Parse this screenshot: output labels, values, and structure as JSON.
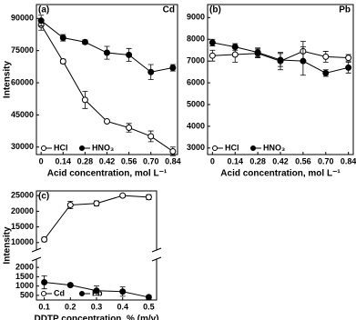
{
  "chart_data": [
    {
      "type": "line",
      "label": "(a)",
      "element": "Cd",
      "x_label": "Acid concentration, mol L⁻¹",
      "y_label": "Intensity",
      "x": [
        0,
        0.14,
        0.28,
        0.42,
        0.56,
        0.7,
        0.84
      ],
      "xlim": [
        -0.03,
        0.87
      ],
      "xticks": [
        0,
        0.14,
        0.28,
        0.42,
        0.56,
        {
          "value": 0.7,
          "label": "0.70"
        },
        0.84
      ],
      "ylim": [
        26500,
        96500
      ],
      "yticks": [
        30000,
        45000,
        60000,
        75000,
        90000
      ],
      "legend": "lower left",
      "series": [
        {
          "name": "HCl",
          "color": "#000000",
          "marker_fill": "#ffffff",
          "values": [
            87000,
            70000,
            52000,
            42000,
            39000,
            35000,
            28000
          ],
          "errors": [
            2500,
            1000,
            4000,
            600,
            2000,
            2500,
            2000
          ]
        },
        {
          "name": "HNO₃",
          "color": "#000000",
          "marker_fill": "#000000",
          "values": [
            89000,
            81000,
            79000,
            74000,
            73000,
            65000,
            67000
          ],
          "errors": [
            2500,
            1500,
            1000,
            3000,
            3000,
            3500,
            1500
          ]
        }
      ]
    },
    {
      "type": "line",
      "label": "(b)",
      "element": "Pb",
      "x_label": "Acid concentration, mol L⁻¹",
      "x": [
        0,
        0.14,
        0.28,
        0.42,
        0.56,
        0.7,
        0.84
      ],
      "xlim": [
        -0.03,
        0.87
      ],
      "xticks": [
        0,
        0.14,
        0.28,
        0.42,
        0.56,
        {
          "value": 0.7,
          "label": "0.70"
        },
        0.84
      ],
      "ylim": [
        2700,
        9600
      ],
      "yticks": [
        3000,
        4000,
        5000,
        6000,
        7000,
        8000,
        9000
      ],
      "legend": "lower left",
      "series": [
        {
          "name": "HCl",
          "color": "#000000",
          "marker_fill": "#ffffff",
          "values": [
            7250,
            7300,
            7350,
            7000,
            7450,
            7200,
            7150
          ],
          "errors": [
            250,
            350,
            200,
            400,
            450,
            250,
            150
          ]
        },
        {
          "name": "HNO₃",
          "color": "#000000",
          "marker_fill": "#000000",
          "values": [
            7850,
            7650,
            7400,
            7050,
            7000,
            6450,
            6700
          ],
          "errors": [
            150,
            150,
            200,
            300,
            650,
            150,
            250
          ]
        }
      ]
    },
    {
      "type": "broken-line",
      "label": "(c)",
      "x_label": "DDTP concentration, % (m/v)",
      "y_label": "Intensity",
      "x": [
        0.1,
        0.2,
        0.3,
        0.4,
        0.5
      ],
      "xlim": [
        0.07,
        0.53
      ],
      "xticks": [
        0.1,
        0.2,
        0.3,
        0.4,
        0.5
      ],
      "ylim": [
        250,
        2300
      ],
      "yticks": [
        500,
        1000,
        1500,
        2000
      ],
      "ylim_upper": [
        8500,
        26500
      ],
      "yticks_upper": [
        10000,
        15000,
        20000,
        25000
      ],
      "legend": "lower left",
      "series": [
        {
          "name": "Cd",
          "color": "#000000",
          "marker_fill": "#ffffff",
          "values": [
            11000,
            22000,
            22500,
            25000,
            24500
          ],
          "errors": [
            700,
            1200,
            800,
            500,
            800
          ]
        },
        {
          "name": "Pb",
          "color": "#000000",
          "marker_fill": "#000000",
          "values": [
            1200,
            1050,
            750,
            700,
            400
          ],
          "errors": [
            350,
            80,
            250,
            250,
            100
          ]
        }
      ]
    }
  ]
}
